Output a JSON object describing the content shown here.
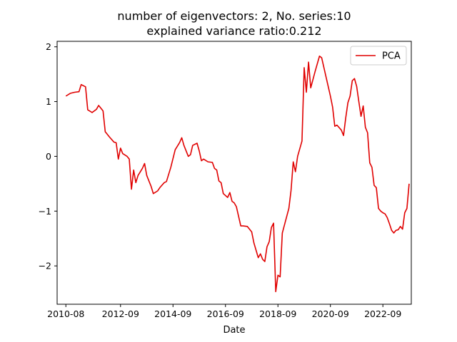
{
  "chart_data": {
    "type": "line",
    "title": "number of eigenvectors: 2, No. series:10",
    "subtitle": "explained variance ratio:0.212",
    "xlabel": "Date",
    "ylabel": "",
    "xlim": [
      "2010-04",
      "2023-10"
    ],
    "ylim": [
      -2.7,
      2.1
    ],
    "xticks": [
      "2010-08",
      "2012-09",
      "2014-09",
      "2016-09",
      "2018-09",
      "2020-09",
      "2022-09"
    ],
    "yticks": [
      -2,
      -1,
      0,
      1,
      2
    ],
    "ytick_labels": [
      "−2",
      "−1",
      "0",
      "1",
      "2"
    ],
    "grid": false,
    "legend": "top-right",
    "series": [
      {
        "name": "PCA",
        "color": "#e00000",
        "points": [
          [
            "2010-08",
            1.1
          ],
          [
            "2010-10",
            1.15
          ],
          [
            "2010-12",
            1.17
          ],
          [
            "2011-02",
            1.18
          ],
          [
            "2011-03",
            1.31
          ],
          [
            "2011-05",
            1.27
          ],
          [
            "2011-06",
            0.85
          ],
          [
            "2011-08",
            0.8
          ],
          [
            "2011-10",
            0.86
          ],
          [
            "2011-11",
            0.93
          ],
          [
            "2012-01",
            0.83
          ],
          [
            "2012-02",
            0.45
          ],
          [
            "2012-04",
            0.35
          ],
          [
            "2012-06",
            0.26
          ],
          [
            "2012-07",
            0.25
          ],
          [
            "2012-08",
            -0.05
          ],
          [
            "2012-09",
            0.15
          ],
          [
            "2012-10",
            0.05
          ],
          [
            "2012-12",
            0.0
          ],
          [
            "2013-01",
            -0.05
          ],
          [
            "2013-02",
            -0.6
          ],
          [
            "2013-03",
            -0.25
          ],
          [
            "2013-04",
            -0.48
          ],
          [
            "2013-05",
            -0.35
          ],
          [
            "2013-07",
            -0.22
          ],
          [
            "2013-08",
            -0.13
          ],
          [
            "2013-09",
            -0.35
          ],
          [
            "2013-11",
            -0.55
          ],
          [
            "2013-12",
            -0.68
          ],
          [
            "2014-02",
            -0.63
          ],
          [
            "2014-03",
            -0.57
          ],
          [
            "2014-05",
            -0.48
          ],
          [
            "2014-06",
            -0.46
          ],
          [
            "2014-08",
            -0.2
          ],
          [
            "2014-10",
            0.12
          ],
          [
            "2014-12",
            0.25
          ],
          [
            "2015-01",
            0.34
          ],
          [
            "2015-02",
            0.2
          ],
          [
            "2015-04",
            0.0
          ],
          [
            "2015-05",
            0.03
          ],
          [
            "2015-06",
            0.2
          ],
          [
            "2015-08",
            0.24
          ],
          [
            "2015-09",
            0.1
          ],
          [
            "2015-10",
            -0.08
          ],
          [
            "2015-11",
            -0.05
          ],
          [
            "2016-01",
            -0.1
          ],
          [
            "2016-03",
            -0.11
          ],
          [
            "2016-04",
            -0.22
          ],
          [
            "2016-05",
            -0.25
          ],
          [
            "2016-06",
            -0.45
          ],
          [
            "2016-07",
            -0.48
          ],
          [
            "2016-08",
            -0.68
          ],
          [
            "2016-10",
            -0.75
          ],
          [
            "2016-11",
            -0.66
          ],
          [
            "2016-12",
            -0.82
          ],
          [
            "2017-01",
            -0.85
          ],
          [
            "2017-02",
            -0.92
          ],
          [
            "2017-04",
            -1.27
          ],
          [
            "2017-05",
            -1.27
          ],
          [
            "2017-07",
            -1.28
          ],
          [
            "2017-08",
            -1.33
          ],
          [
            "2017-09",
            -1.38
          ],
          [
            "2017-10",
            -1.58
          ],
          [
            "2017-12",
            -1.85
          ],
          [
            "2018-01",
            -1.78
          ],
          [
            "2018-02",
            -1.88
          ],
          [
            "2018-03",
            -1.92
          ],
          [
            "2018-04",
            -1.65
          ],
          [
            "2018-05",
            -1.56
          ],
          [
            "2018-06",
            -1.3
          ],
          [
            "2018-07",
            -1.22
          ],
          [
            "2018-08",
            -2.47
          ],
          [
            "2018-09",
            -2.17
          ],
          [
            "2018-10",
            -2.2
          ],
          [
            "2018-11",
            -1.4
          ],
          [
            "2019-02",
            -0.95
          ],
          [
            "2019-03",
            -0.62
          ],
          [
            "2019-04",
            -0.1
          ],
          [
            "2019-05",
            -0.28
          ],
          [
            "2019-06",
            0.0
          ],
          [
            "2019-08",
            0.28
          ],
          [
            "2019-09",
            1.62
          ],
          [
            "2019-10",
            1.17
          ],
          [
            "2019-11",
            1.72
          ],
          [
            "2019-12",
            1.25
          ],
          [
            "2020-02",
            1.55
          ],
          [
            "2020-04",
            1.83
          ],
          [
            "2020-05",
            1.8
          ],
          [
            "2020-07",
            1.45
          ],
          [
            "2020-09",
            1.1
          ],
          [
            "2020-10",
            0.9
          ],
          [
            "2020-11",
            0.55
          ],
          [
            "2020-12",
            0.57
          ],
          [
            "2021-02",
            0.48
          ],
          [
            "2021-03",
            0.38
          ],
          [
            "2021-04",
            0.7
          ],
          [
            "2021-05",
            0.98
          ],
          [
            "2021-06",
            1.1
          ],
          [
            "2021-07",
            1.38
          ],
          [
            "2021-08",
            1.42
          ],
          [
            "2021-09",
            1.28
          ],
          [
            "2021-10",
            1.0
          ],
          [
            "2021-11",
            0.73
          ],
          [
            "2021-12",
            0.92
          ],
          [
            "2022-01",
            0.53
          ],
          [
            "2022-02",
            0.43
          ],
          [
            "2022-03",
            -0.12
          ],
          [
            "2022-04",
            -0.2
          ],
          [
            "2022-05",
            -0.53
          ],
          [
            "2022-06",
            -0.57
          ],
          [
            "2022-07",
            -0.95
          ],
          [
            "2022-08",
            -1.0
          ],
          [
            "2022-09",
            -1.03
          ],
          [
            "2022-10",
            -1.05
          ],
          [
            "2022-11",
            -1.12
          ],
          [
            "2022-12",
            -1.23
          ],
          [
            "2023-01",
            -1.35
          ],
          [
            "2023-02",
            -1.4
          ],
          [
            "2023-03",
            -1.35
          ],
          [
            "2023-04",
            -1.34
          ],
          [
            "2023-05",
            -1.28
          ],
          [
            "2023-06",
            -1.33
          ],
          [
            "2023-07",
            -1.03
          ],
          [
            "2023-08",
            -0.95
          ],
          [
            "2023-09",
            -0.5
          ]
        ]
      }
    ]
  }
}
